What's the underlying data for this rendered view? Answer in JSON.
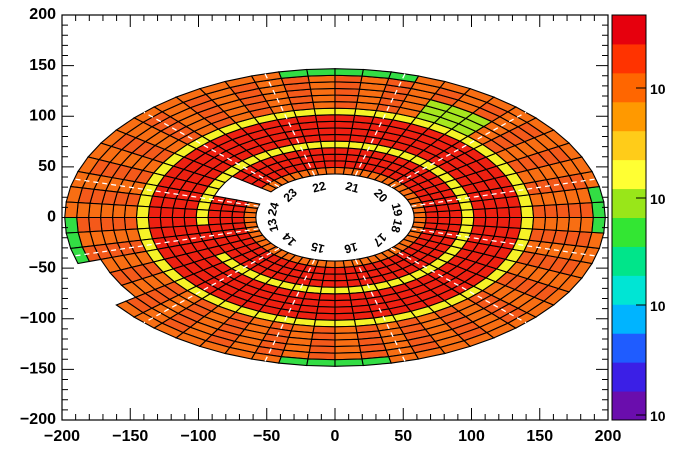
{
  "chart_data": {
    "type": "heatmap",
    "geometry": "polar-disk-sectors",
    "title": "",
    "xlabel": "",
    "ylabel": "",
    "xlim": [
      -200,
      200
    ],
    "ylim": [
      -200,
      200
    ],
    "x_ticks": [
      "−200",
      "−150",
      "−100",
      "−50",
      "0",
      "50",
      "100",
      "150",
      "200"
    ],
    "y_ticks": [
      "200",
      "150",
      "100",
      "50",
      "0",
      "−50",
      "−100",
      "−150",
      "−200"
    ],
    "disk": {
      "inner_radius_x": 58,
      "inner_radius_y": 43,
      "outer_radius_x": 198,
      "outer_radius_y": 147,
      "n_sectors": 12,
      "n_rings": 16,
      "cells_per_sector": 5
    },
    "sector_labels": [
      "13",
      "14",
      "15",
      "16",
      "17",
      "18",
      "19",
      "20",
      "21",
      "22",
      "23",
      "24"
    ],
    "yellow_rings": [
      4,
      9
    ],
    "cell_levels": {
      "default_outer": "orange",
      "default_inner": "red",
      "outermost_ring": "orange-green"
    },
    "missing_cells": [
      "sector 13-14 inner notch",
      "sector 16 outer edge"
    ],
    "color_scale": {
      "type": "log",
      "tick_labels": [
        "10",
        "10",
        "10",
        "10"
      ],
      "colors": [
        "#6a0dad",
        "#3b1fe6",
        "#1f5cff",
        "#00b4ff",
        "#00e5d4",
        "#00e58a",
        "#33e633",
        "#99e619",
        "#ffff33",
        "#ffcc19",
        "#ff9900",
        "#ff6600",
        "#ff3300",
        "#e6000d"
      ]
    },
    "grid": false
  }
}
